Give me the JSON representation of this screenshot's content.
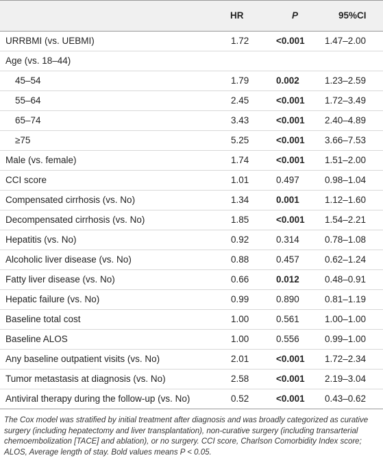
{
  "table": {
    "header": [
      null,
      "HR",
      "P",
      "95%CI"
    ],
    "rows": [
      {
        "label": "URRBMI (vs. UEBMI)",
        "hr": "1.72",
        "p": "<0.001",
        "ci": "1.47–2.00",
        "bold": true,
        "indent": false
      },
      {
        "label": "Age (vs. 18–44)",
        "indent": false
      },
      {
        "label": "45–54",
        "hr": "1.79",
        "p": "0.002",
        "ci": "1.23–2.59",
        "bold": true,
        "indent": true
      },
      {
        "label": "55–64",
        "hr": "2.45",
        "p": "<0.001",
        "ci": "1.72–3.49",
        "bold": true,
        "indent": true
      },
      {
        "label": "65–74",
        "hr": "3.43",
        "p": "<0.001",
        "ci": "2.40–4.89",
        "bold": true,
        "indent": true
      },
      {
        "label": "≥75",
        "hr": "5.25",
        "p": "<0.001",
        "ci": "3.66–7.53",
        "bold": true,
        "indent": true
      },
      {
        "label": "Male (vs. female)",
        "hr": "1.74",
        "p": "<0.001",
        "ci": "1.51–2.00",
        "bold": true,
        "indent": false
      },
      {
        "label": "CCI score",
        "hr": "1.01",
        "p": "0.497",
        "ci": "0.98–1.04",
        "bold": false,
        "indent": false
      },
      {
        "label": "Compensated cirrhosis (vs. No)",
        "hr": "1.34",
        "p": "0.001",
        "ci": "1.12–1.60",
        "bold": true,
        "indent": false
      },
      {
        "label": "Decompensated cirrhosis (vs. No)",
        "hr": "1.85",
        "p": "<0.001",
        "ci": "1.54–2.21",
        "bold": true,
        "indent": false
      },
      {
        "label": "Hepatitis (vs. No)",
        "hr": "0.92",
        "p": "0.314",
        "ci": "0.78–1.08",
        "bold": false,
        "indent": false
      },
      {
        "label": "Alcoholic liver disease (vs. No)",
        "hr": "0.88",
        "p": "0.457",
        "ci": "0.62–1.24",
        "bold": false,
        "indent": false
      },
      {
        "label": "Fatty liver disease (vs. No)",
        "hr": "0.66",
        "p": "0.012",
        "ci": "0.48–0.91",
        "bold": true,
        "indent": false
      },
      {
        "label": "Hepatic failure (vs. No)",
        "hr": "0.99",
        "p": "0.890",
        "ci": "0.81–1.19",
        "bold": false,
        "indent": false
      },
      {
        "label": "Baseline total cost",
        "hr": "1.00",
        "p": "0.561",
        "ci": "1.00–1.00",
        "bold": false,
        "indent": false
      },
      {
        "label": "Baseline ALOS",
        "hr": "1.00",
        "p": "0.556",
        "ci": "0.99–1.00",
        "bold": false,
        "indent": false
      },
      {
        "label": "Any baseline outpatient visits (vs. No)",
        "hr": "2.01",
        "p": "<0.001",
        "ci": "1.72–2.34",
        "bold": true,
        "indent": false
      },
      {
        "label": "Tumor metastasis at diagnosis (vs. No)",
        "hr": "2.58",
        "p": "<0.001",
        "ci": "2.19–3.04",
        "bold": true,
        "indent": false
      },
      {
        "label": "Antiviral therapy during the follow-up (vs. No)",
        "hr": "0.52",
        "p": "<0.001",
        "ci": "0.43–0.62",
        "bold": true,
        "indent": false
      }
    ]
  },
  "footnote": "The Cox model was stratified by initial treatment after diagnosis and was broadly categorized as curative surgery (including hepatectomy and liver transplantation), non-curative surgery (including transarterial chemoembolization [TACE] and ablation), or no surgery. CCI score, Charlson Comorbidity Index score; ALOS, Average length of stay. Bold values means P < 0.05."
}
